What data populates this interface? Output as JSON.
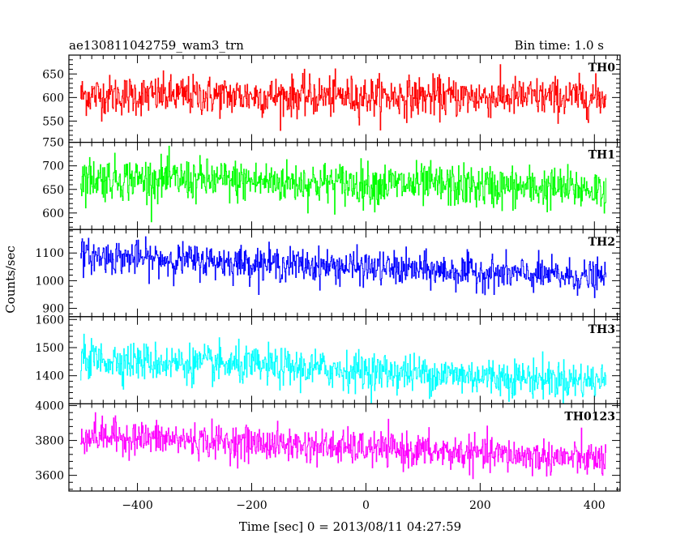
{
  "header": {
    "title": "ae130811042759_wam3_trn",
    "bin_time": "Bin time: 1.0 s"
  },
  "chart_data": {
    "type": "line",
    "xlabel": "Time [sec] 0 = 2013/08/11 04:27:59",
    "ylabel": "Counts/sec",
    "xlim": [
      -520,
      445
    ],
    "x_ticks": [
      -400,
      -200,
      0,
      200,
      400
    ],
    "x_start": -500,
    "x_end": 420,
    "panels": [
      {
        "name": "TH0",
        "color": "#ff0000",
        "ylim": [
          505,
          690
        ],
        "y_ticks": [
          550,
          600,
          650
        ],
        "start_mean": 605,
        "end_mean": 600,
        "noise": 28
      },
      {
        "name": "TH1",
        "color": "#00ff00",
        "ylim": [
          565,
          750
        ],
        "y_ticks": [
          600,
          650,
          700,
          750
        ],
        "start_mean": 675,
        "end_mean": 650,
        "noise": 30
      },
      {
        "name": "TH2",
        "color": "#0000ff",
        "ylim": [
          870,
          1185
        ],
        "y_ticks": [
          900,
          1000,
          1100
        ],
        "start_mean": 1090,
        "end_mean": 1010,
        "noise": 40
      },
      {
        "name": "TH3",
        "color": "#00ffff",
        "ylim": [
          1300,
          1610
        ],
        "y_ticks": [
          1400,
          1500,
          1600
        ],
        "start_mean": 1460,
        "end_mean": 1380,
        "noise": 45
      },
      {
        "name": "TH0123",
        "color": "#ff00ff",
        "ylim": [
          3510,
          4010
        ],
        "y_ticks": [
          3600,
          3800,
          4000
        ],
        "start_mean": 3830,
        "end_mean": 3690,
        "noise": 65
      }
    ]
  }
}
